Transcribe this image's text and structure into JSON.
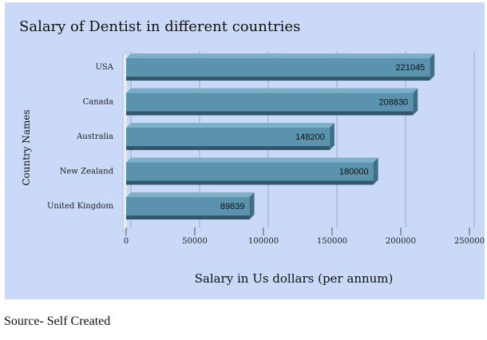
{
  "chart_data": {
    "type": "bar",
    "orientation": "horizontal",
    "title": "Salary of Dentist in different countries",
    "xlabel": "Salary in Us dollars (per annum)",
    "ylabel": "Country Names",
    "categories": [
      "USA",
      "Canada",
      "Australia",
      "New Zealand",
      "United Kingdom"
    ],
    "values": [
      221045,
      208830,
      148200,
      180000,
      89839
    ],
    "xlim": [
      0,
      250000
    ],
    "xticks": [
      0,
      50000,
      100000,
      150000,
      200000,
      250000
    ],
    "grid": true,
    "bar_color": "#5b93ae",
    "background": "#c9d9f7"
  },
  "source_note": "Source- Self Created"
}
